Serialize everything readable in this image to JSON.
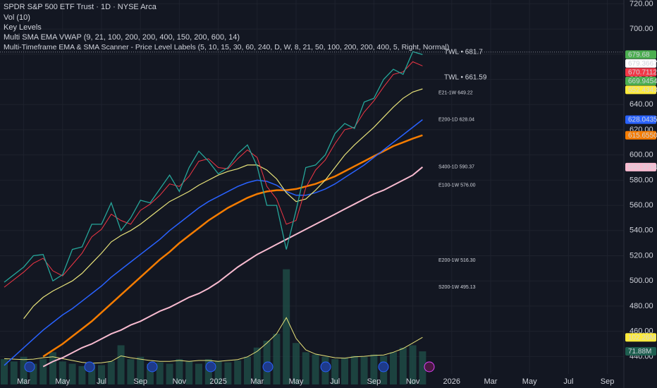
{
  "chart_data": {
    "type": "line",
    "title": "SPDR S&P 500 ETF Trust · 1D · NYSE Arca",
    "indicators": [
      "Vol (10)",
      "Key Levels",
      "Multi SMA EMA VWAP (9, 21, 100, 200, 200, 400, 150, 200, 600, 14)",
      "Multi-Timeframe EMA & SMA Scanner - Price Level Labels (5, 10, 15, 30, 60, 240, D, W, 8, 21, 50, 100, 200, 200, 400, 5, Right, Normal)"
    ],
    "grid": true,
    "categories": [
      null,
      null,
      "Mar",
      null,
      null,
      null,
      "May",
      null,
      null,
      null,
      "Jul",
      null,
      null,
      null,
      "Sep",
      null,
      null,
      null,
      "Nov",
      null,
      null,
      null,
      "2025",
      null,
      null,
      null,
      "Mar",
      null,
      null,
      null,
      "May",
      null,
      null,
      null,
      "Jul",
      null,
      null,
      null,
      "Sep",
      null,
      null,
      null,
      "Nov",
      null,
      null,
      null,
      "2026",
      null,
      null,
      null,
      "Mar",
      null,
      null,
      null,
      "May",
      null,
      null,
      null,
      "Jul",
      null,
      null,
      null,
      "Sep",
      null
    ],
    "ylim": [
      415,
      723
    ],
    "yticks": [
      {
        "value": 440,
        "label": "440.00"
      },
      {
        "value": 460,
        "label": "460.00"
      },
      {
        "value": 480,
        "label": "480.00"
      },
      {
        "value": 500,
        "label": "500.00"
      },
      {
        "value": 520,
        "label": "520.00"
      },
      {
        "value": 540,
        "label": "540.00"
      },
      {
        "value": 560,
        "label": "560.00"
      },
      {
        "value": 580,
        "label": "580.00"
      },
      {
        "value": 600,
        "label": "600.00"
      },
      {
        "value": 620,
        "label": "620.00"
      },
      {
        "value": 640,
        "label": "640.00"
      },
      {
        "value": 660,
        "label": "660.00"
      },
      {
        "value": 680,
        "label": "680.00"
      },
      {
        "value": 700,
        "label": "700.00"
      },
      {
        "value": 720,
        "label": "720.00"
      }
    ],
    "series": [
      {
        "color": "#f8bbd0",
        "width": 2,
        "values": [
          null,
          null,
          null,
          null,
          432,
          436,
          439,
          443,
          447,
          450,
          454,
          458,
          461,
          465,
          468,
          472,
          476,
          479,
          483,
          487,
          490,
          494,
          499,
          505,
          511,
          516,
          521,
          525,
          529,
          533,
          537,
          541,
          545,
          549,
          553,
          557,
          561,
          565,
          569,
          572,
          576,
          580,
          584,
          590.3704,
          null,
          null,
          null,
          null,
          null,
          null,
          null,
          null,
          null,
          null,
          null,
          null,
          null,
          null,
          null,
          null,
          null,
          null,
          null,
          null
        ]
      },
      {
        "color": "#f57c00",
        "width": 2.5,
        "values": [
          null,
          null,
          null,
          null,
          440,
          445,
          450,
          456,
          462,
          468,
          475,
          482,
          489,
          496,
          503,
          510,
          517,
          523,
          530,
          536,
          542,
          548,
          553,
          558,
          562,
          566,
          569,
          571,
          572,
          572,
          573,
          575,
          577,
          580,
          583,
          587,
          591,
          595,
          599,
          603,
          607,
          610,
          613,
          615.655,
          null,
          null,
          null,
          null,
          null,
          null,
          null,
          null,
          null,
          null,
          null,
          null,
          null,
          null,
          null,
          null,
          null,
          null,
          null,
          null
        ]
      },
      {
        "color": "#2962ff",
        "width": 1.5,
        "values": [
          433,
          440,
          447,
          454,
          461,
          467,
          473,
          478,
          484,
          490,
          496,
          503,
          509,
          515,
          521,
          527,
          533,
          540,
          546,
          552,
          558,
          563,
          567,
          571,
          575,
          578,
          580,
          579,
          576,
          571,
          568,
          568,
          570,
          573,
          577,
          582,
          587,
          592,
          598,
          604,
          610,
          616,
          622,
          628.0435,
          null,
          null,
          null,
          null,
          null,
          null,
          null,
          null,
          null,
          null,
          null,
          null,
          null,
          null,
          null,
          null,
          null,
          null,
          null,
          null
        ]
      },
      {
        "color": "#e8e37a",
        "width": 1.2,
        "values": [
          null,
          null,
          470,
          480,
          487,
          492,
          496,
          500,
          506,
          514,
          522,
          531,
          536,
          540,
          545,
          551,
          557,
          563,
          567,
          571,
          576,
          580,
          584,
          587,
          589,
          592,
          592,
          588,
          581,
          570,
          563,
          565,
          572,
          580,
          590,
          600,
          608,
          615,
          622,
          630,
          638,
          645,
          650,
          652.4343,
          null,
          null,
          null,
          null,
          null,
          null,
          null,
          null,
          null,
          null,
          null,
          null,
          null,
          null,
          null,
          null,
          null,
          null,
          null,
          null
        ]
      },
      {
        "color": "#f23645",
        "width": 1,
        "values": [
          495,
          501,
          507,
          514,
          518,
          508,
          504,
          513,
          522,
          535,
          541,
          553,
          548,
          545,
          556,
          561,
          568,
          577,
          575,
          583,
          595,
          597,
          590,
          589,
          597,
          604,
          598,
          575,
          565,
          545,
          548,
          574,
          588,
          596,
          609,
          620,
          622,
          634,
          643,
          654,
          664,
          666,
          674,
          670.7112,
          null,
          null,
          null,
          null,
          null,
          null,
          null,
          null,
          null,
          null,
          null,
          null,
          null,
          null,
          null,
          null,
          null,
          null,
          null,
          null
        ]
      },
      {
        "color": "#26a69a",
        "width": 1.3,
        "values": [
          499,
          505,
          511,
          520,
          521,
          500,
          505,
          525,
          527,
          545,
          545,
          562,
          540,
          550,
          564,
          562,
          573,
          584,
          571,
          590,
          603,
          595,
          585,
          590,
          601,
          608,
          591,
          560,
          560,
          525,
          556,
          590,
          592,
          600,
          617,
          625,
          621,
          642,
          645,
          660,
          668,
          664,
          682,
          679.68,
          null,
          null,
          null,
          null,
          null,
          null,
          null,
          null,
          null,
          null,
          null,
          null,
          null,
          null,
          null,
          null,
          null,
          null,
          null,
          null
        ]
      }
    ],
    "volume": {
      "color": "#1f4d47",
      "ma_color": "#e8e37a",
      "vlim": [
        0,
        300
      ],
      "values": [
        55,
        50,
        60,
        45,
        55,
        70,
        50,
        45,
        40,
        45,
        42,
        50,
        85,
        55,
        60,
        45,
        48,
        45,
        55,
        50,
        45,
        55,
        50,
        48,
        52,
        60,
        80,
        95,
        110,
        250,
        90,
        70,
        65,
        60,
        55,
        58,
        62,
        60,
        65,
        62,
        70,
        80,
        85,
        71.88,
        null,
        null,
        null,
        null,
        null,
        null,
        null,
        null,
        null,
        null,
        null,
        null,
        null,
        null,
        null,
        null,
        null,
        null,
        null,
        null
      ],
      "ma": [
        56,
        55,
        54,
        55,
        58,
        60,
        56,
        52,
        48,
        46,
        47,
        50,
        62,
        58,
        55,
        52,
        50,
        50,
        52,
        50,
        52,
        52,
        50,
        52,
        54,
        60,
        72,
        90,
        110,
        145,
        100,
        75,
        66,
        62,
        58,
        57,
        60,
        61,
        63,
        64,
        70,
        78,
        90,
        102.26,
        null,
        null,
        null,
        null,
        null,
        null,
        null,
        null,
        null,
        null,
        null,
        null,
        null,
        null,
        null,
        null,
        null,
        null,
        null,
        null
      ],
      "labels": [
        {
          "value": 102.26,
          "label": "102.26M",
          "color": "#ffeb3b"
        },
        {
          "value": 71.88,
          "label": "71.88M",
          "color": "#1e5e4f"
        }
      ]
    },
    "price_labels": [
      {
        "value": 679.68,
        "label": "679.68",
        "color": "#4caf50"
      },
      {
        "value": 679.3667,
        "label": "679.3667",
        "color": "#ffffff"
      },
      {
        "value": 670.7112,
        "label": "670.7112",
        "color": "#f23645"
      },
      {
        "value": 669.9454,
        "label": "669.9454",
        "color": "#4caf50"
      },
      {
        "value": 652.4343,
        "label": "652.4343",
        "color": "#ffeb3b"
      },
      {
        "value": 628.0435,
        "label": "628.0435",
        "color": "#2962ff"
      },
      {
        "value": 615.655,
        "label": "615.6550",
        "color": "#f57c00"
      },
      {
        "value": 590.3704,
        "label": "590.3704",
        "color": "#f8bbd0"
      }
    ],
    "annotations": [
      {
        "value": 681.7,
        "label": "TWL • 681.7",
        "color": "#b2b5be",
        "line": true
      },
      {
        "value": 661.59,
        "label": "TWL • 661.59",
        "color": "#d1d4dc"
      },
      {
        "value": 649.22,
        "label": "E21-1W 649.22",
        "color": "#4caf50"
      },
      {
        "value": 628.04,
        "label": "E200-1D 628.04",
        "color": "#4caf50"
      },
      {
        "value": 590.37,
        "label": "S400-1D 590.37",
        "color": "#4caf50"
      },
      {
        "value": 576,
        "label": "E100-1W 576.00",
        "color": "#4caf50"
      },
      {
        "value": 516.3,
        "label": "E200-1W 516.30",
        "color": "#4caf50"
      },
      {
        "value": 495.13,
        "label": "S200-1W 495.13",
        "color": "#4caf50"
      }
    ]
  }
}
